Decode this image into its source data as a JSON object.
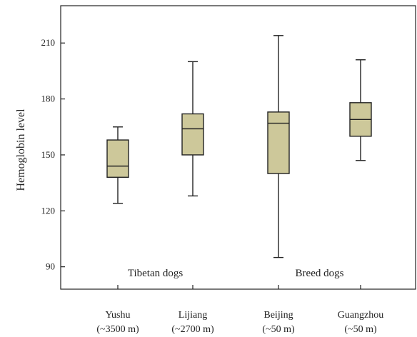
{
  "chart_data": {
    "type": "boxplot",
    "ylabel": "Hemoglobin level",
    "ylim": [
      78,
      230
    ],
    "yticks": [
      90,
      120,
      150,
      180,
      210
    ],
    "grid": false,
    "box_color": "#cdc89a",
    "categories": [
      {
        "name": "Yushu",
        "sublabel": "(~3500 m)",
        "min": 124,
        "q1": 138,
        "median": 144,
        "q3": 158,
        "max": 165
      },
      {
        "name": "Lijiang",
        "sublabel": "(~2700 m)",
        "min": 128,
        "q1": 150,
        "median": 164,
        "q3": 172,
        "max": 200
      },
      {
        "name": "Beijing",
        "sublabel": "(~50 m)",
        "min": 95,
        "q1": 140,
        "median": 167,
        "q3": 173,
        "max": 214
      },
      {
        "name": "Guangzhou",
        "sublabel": "(~50 m)",
        "min": 147,
        "q1": 160,
        "median": 169,
        "q3": 178,
        "max": 201
      }
    ],
    "groups": [
      {
        "label": "Tibetan dogs",
        "categories": [
          0,
          1
        ]
      },
      {
        "label": "Breed dogs",
        "categories": [
          2,
          3
        ]
      }
    ]
  }
}
